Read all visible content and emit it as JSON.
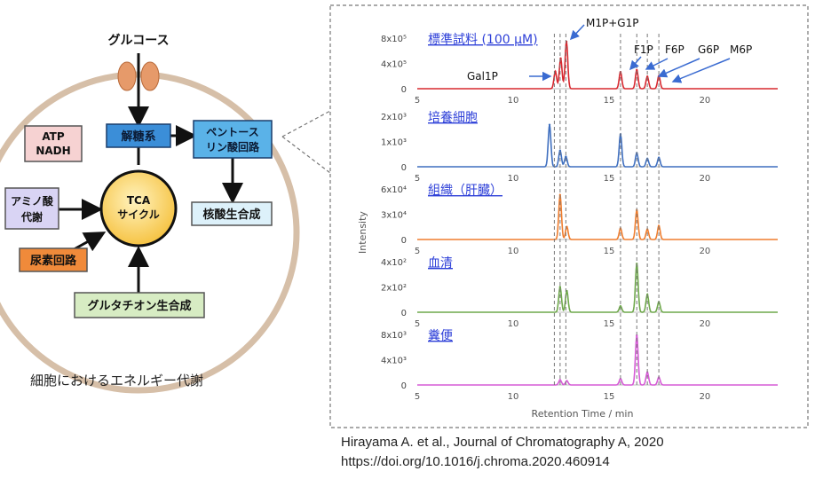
{
  "left_diagram": {
    "input_label": "グルコース",
    "boxes": {
      "glycolysis": "解糖系",
      "pentose_line1": "ペントース",
      "pentose_line2": "リン酸回路",
      "atp_line1": "ATP",
      "atp_line2": "NADH",
      "amino_line1": "アミノ酸",
      "amino_line2": "代謝",
      "tca_line1": "TCA",
      "tca_line2": "サイクル",
      "nucleic": "核酸生合成",
      "urea": "尿素回路",
      "glutathione": "グルタチオン生合成"
    },
    "caption": "細胞におけるエネルギー代謝",
    "colors": {
      "cell_border": "#d6bfa8",
      "glycolysis_fill": "#3b8ed8",
      "pentose_fill": "#5ab2e8",
      "atp_fill": "#f6d2d2",
      "amino_fill": "#d9d4f4",
      "nucleic_fill": "#ddf1fa",
      "urea_fill": "#f08a3a",
      "glutathione_fill": "#d7ecc3",
      "tca_fill": "#ffd76a"
    }
  },
  "chart_data": {
    "type": "line",
    "xlabel": "Retention Time / min",
    "ylabel": "Intensity",
    "x_ticks": [
      5,
      10,
      15,
      20
    ],
    "xlim": [
      5,
      23.8
    ],
    "marker_lines_x": [
      12.15,
      12.45,
      12.75,
      15.6,
      16.45,
      17.0,
      17.6
    ],
    "peak_labels": [
      "Gal1P",
      "M1P+G1P",
      "F1P",
      "F6P",
      "G6P",
      "M6P"
    ],
    "panels": [
      {
        "name": "標準試料 (100 µM)",
        "color": "#d7282f",
        "ticks": [
          "8x10⁵",
          "4x10⁵",
          "0"
        ],
        "peaks": [
          [
            12.2,
            0.34
          ],
          [
            12.48,
            0.6
          ],
          [
            12.78,
            0.93
          ],
          [
            15.6,
            0.33
          ],
          [
            16.45,
            0.37
          ],
          [
            17.0,
            0.24
          ],
          [
            17.6,
            0.25
          ]
        ]
      },
      {
        "name": "培養細胞",
        "color": "#3f6fbf",
        "ticks": [
          "2x10³",
          "1x10³",
          "0"
        ],
        "peaks": [
          [
            11.9,
            0.83
          ],
          [
            12.45,
            0.32
          ],
          [
            12.75,
            0.2
          ],
          [
            15.6,
            0.64
          ],
          [
            16.45,
            0.27
          ],
          [
            17.0,
            0.16
          ],
          [
            17.6,
            0.18
          ]
        ]
      },
      {
        "name": "組織（肝臓）",
        "color": "#ef7d2e",
        "ticks": [
          "6x10⁴",
          "3x10⁴",
          "0"
        ],
        "peaks": [
          [
            12.45,
            0.88
          ],
          [
            12.8,
            0.25
          ],
          [
            15.6,
            0.22
          ],
          [
            16.45,
            0.58
          ],
          [
            17.0,
            0.2
          ],
          [
            17.6,
            0.27
          ]
        ]
      },
      {
        "name": "血清",
        "color": "#6fa84c",
        "ticks": [
          "4x10²",
          "2x10²",
          "0"
        ],
        "peaks": [
          [
            12.45,
            0.5
          ],
          [
            12.8,
            0.42
          ],
          [
            15.6,
            0.12
          ],
          [
            16.45,
            0.96
          ],
          [
            17.0,
            0.35
          ],
          [
            17.6,
            0.2
          ]
        ]
      },
      {
        "name": "糞便",
        "color": "#d65bd6",
        "ticks": [
          "8x10³",
          "4x10³",
          "0"
        ],
        "peaks": [
          [
            12.45,
            0.1
          ],
          [
            12.8,
            0.08
          ],
          [
            15.6,
            0.12
          ],
          [
            16.45,
            0.98
          ],
          [
            17.0,
            0.25
          ],
          [
            17.6,
            0.15
          ]
        ]
      }
    ]
  },
  "citation": {
    "line1": "Hirayama A. et al., Journal of Chromatography A, 2020",
    "line2": "https://doi.org/10.1016/j.chroma.2020.460914"
  }
}
